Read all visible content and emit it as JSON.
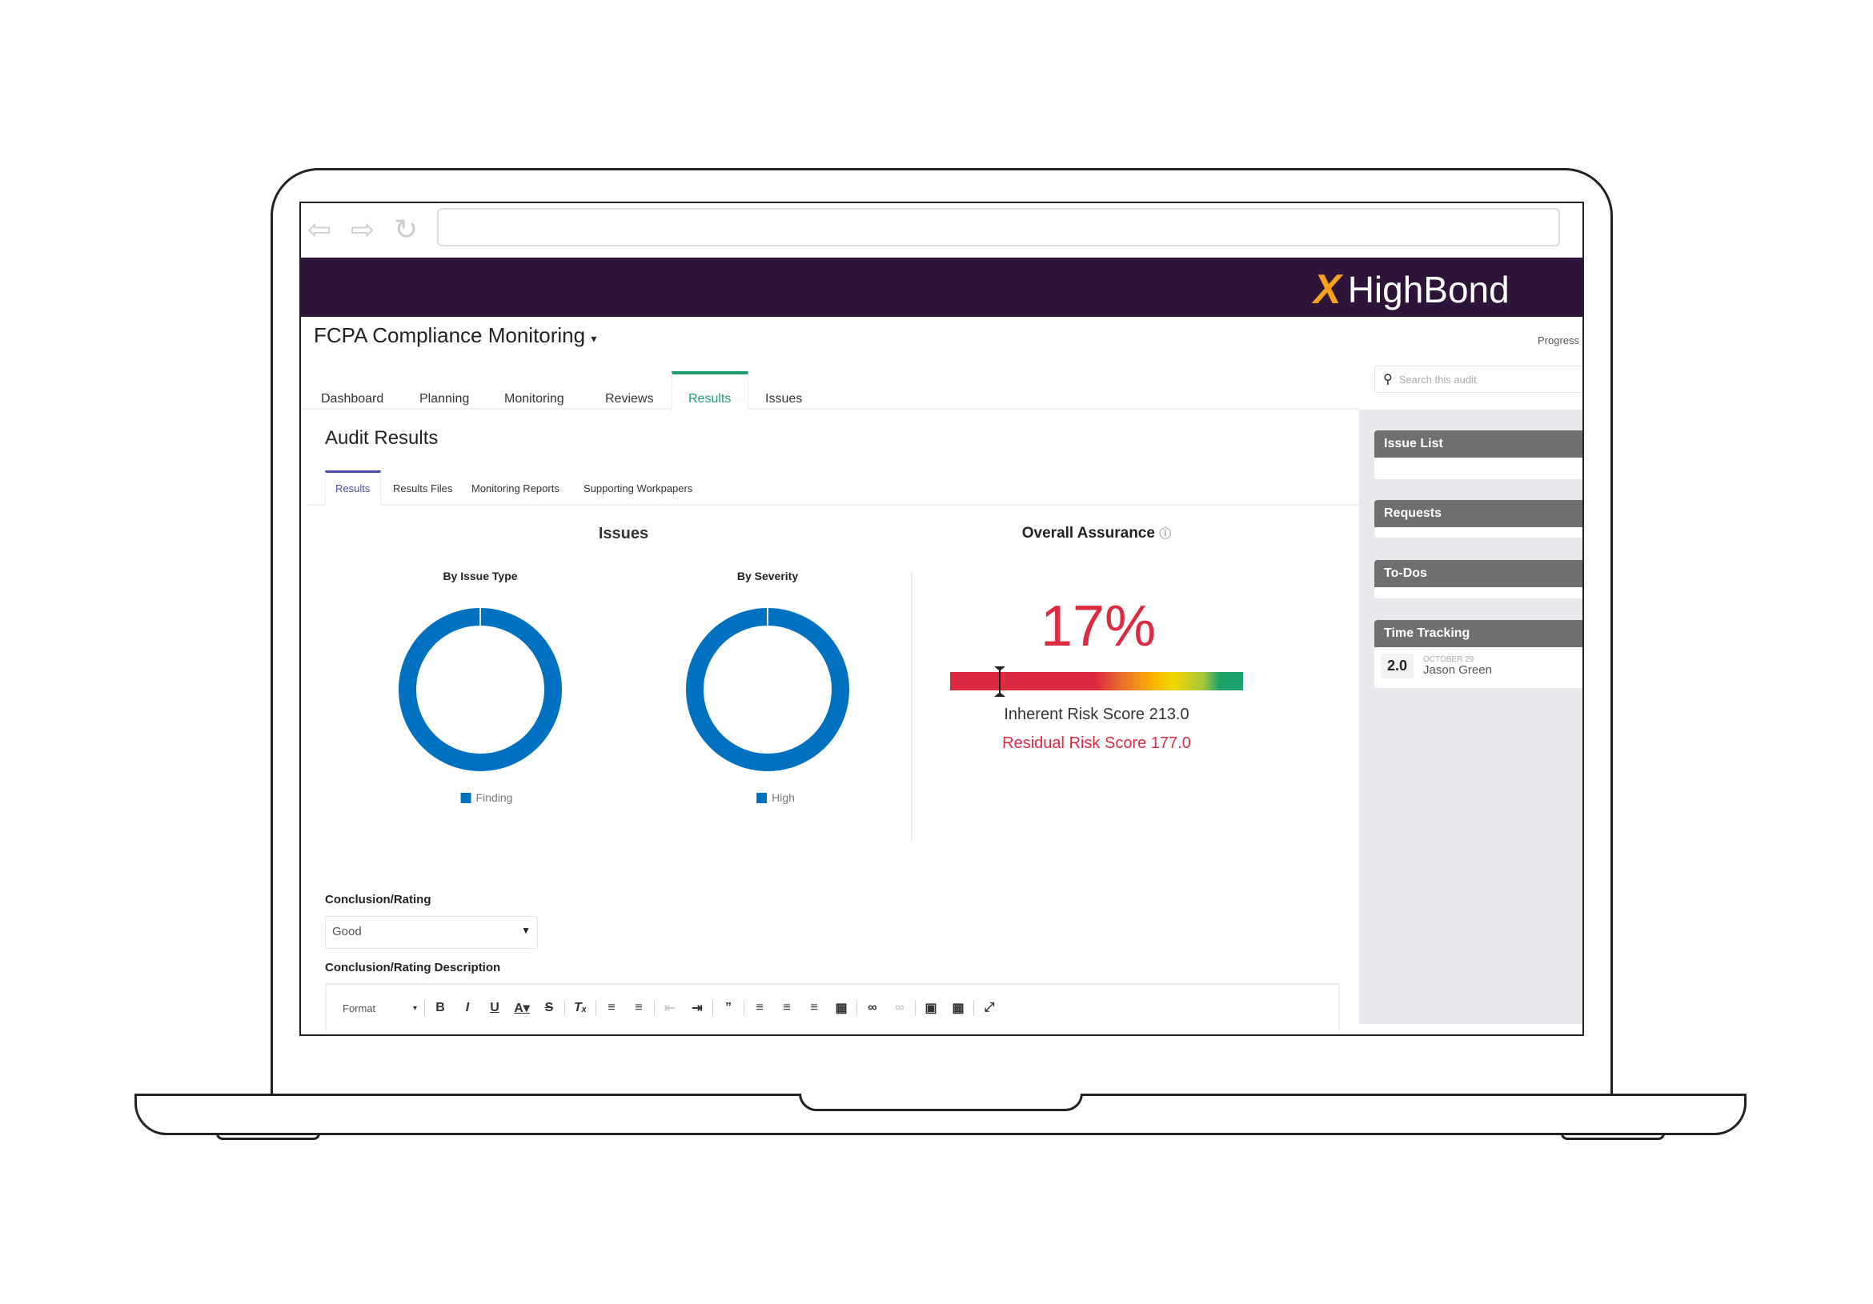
{
  "app": {
    "brand": "HighBond",
    "title": "FCPA Compliance Monitoring",
    "progress_label": "Progress",
    "search_placeholder": "Search this audit"
  },
  "tabs": [
    {
      "label": "Dashboard"
    },
    {
      "label": "Planning"
    },
    {
      "label": "Monitoring"
    },
    {
      "label": "Reviews"
    },
    {
      "label": "Results",
      "active": true
    },
    {
      "label": "Issues"
    }
  ],
  "page": {
    "heading": "Audit Results",
    "subtabs": [
      {
        "label": "Results",
        "active": true
      },
      {
        "label": "Results Files"
      },
      {
        "label": "Monitoring Reports"
      },
      {
        "label": "Supporting Workpapers"
      }
    ]
  },
  "sidebar": {
    "issue_list": "Issue List",
    "requests": "Requests",
    "todos": "To-Dos",
    "time_tracking": "Time Tracking",
    "time_entry": {
      "hours": "2.0",
      "date": "OCTOBER 29",
      "name": "Jason Green"
    }
  },
  "chart_data": [
    {
      "type": "pie",
      "title": "By Issue Type",
      "group_title": "Issues",
      "categories": [
        "Finding"
      ],
      "values": [
        100
      ],
      "colors": [
        "#0070c0"
      ],
      "legend": "bottom"
    },
    {
      "type": "pie",
      "title": "By Severity",
      "group_title": "Issues",
      "categories": [
        "High"
      ],
      "values": [
        100
      ],
      "colors": [
        "#0070c0"
      ],
      "legend": "bottom"
    }
  ],
  "assurance": {
    "title": "Overall Assurance",
    "percent_label": "17%",
    "percent": 17,
    "inherent": "Inherent Risk Score 213.0",
    "residual": "Residual Risk Score 177.0",
    "accent": "#dc2b40"
  },
  "conclusion": {
    "label": "Conclusion/Rating",
    "value": "Good",
    "description_label": "Conclusion/Rating Description",
    "format_label": "Format"
  }
}
